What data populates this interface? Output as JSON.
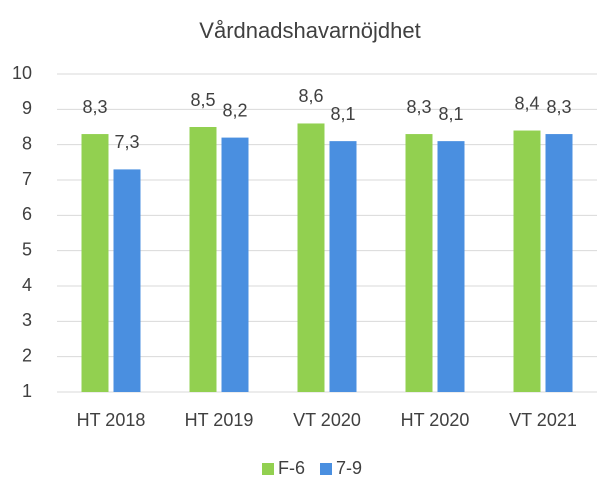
{
  "chart_data": {
    "type": "bar",
    "title": "Vårdnadshavarnöjdhet",
    "categories": [
      "HT 2018",
      "HT 2019",
      "VT 2020",
      "HT 2020",
      "VT 2021"
    ],
    "series": [
      {
        "name": "F-6",
        "color": "#92d050",
        "values": [
          8.3,
          8.5,
          8.6,
          8.3,
          8.4
        ],
        "value_labels": [
          "8,3",
          "8,5",
          "8,6",
          "8,3",
          "8,4"
        ]
      },
      {
        "name": "7-9",
        "color": "#4a8fe0",
        "values": [
          7.3,
          8.2,
          8.1,
          8.1,
          8.3
        ],
        "value_labels": [
          "7,3",
          "8,2",
          "8,1",
          "8,1",
          "8,3"
        ]
      }
    ],
    "ylim": [
      1,
      10
    ],
    "yticks": [
      1,
      2,
      3,
      4,
      5,
      6,
      7,
      8,
      9,
      10
    ],
    "grid": true,
    "legend": "bottom"
  }
}
